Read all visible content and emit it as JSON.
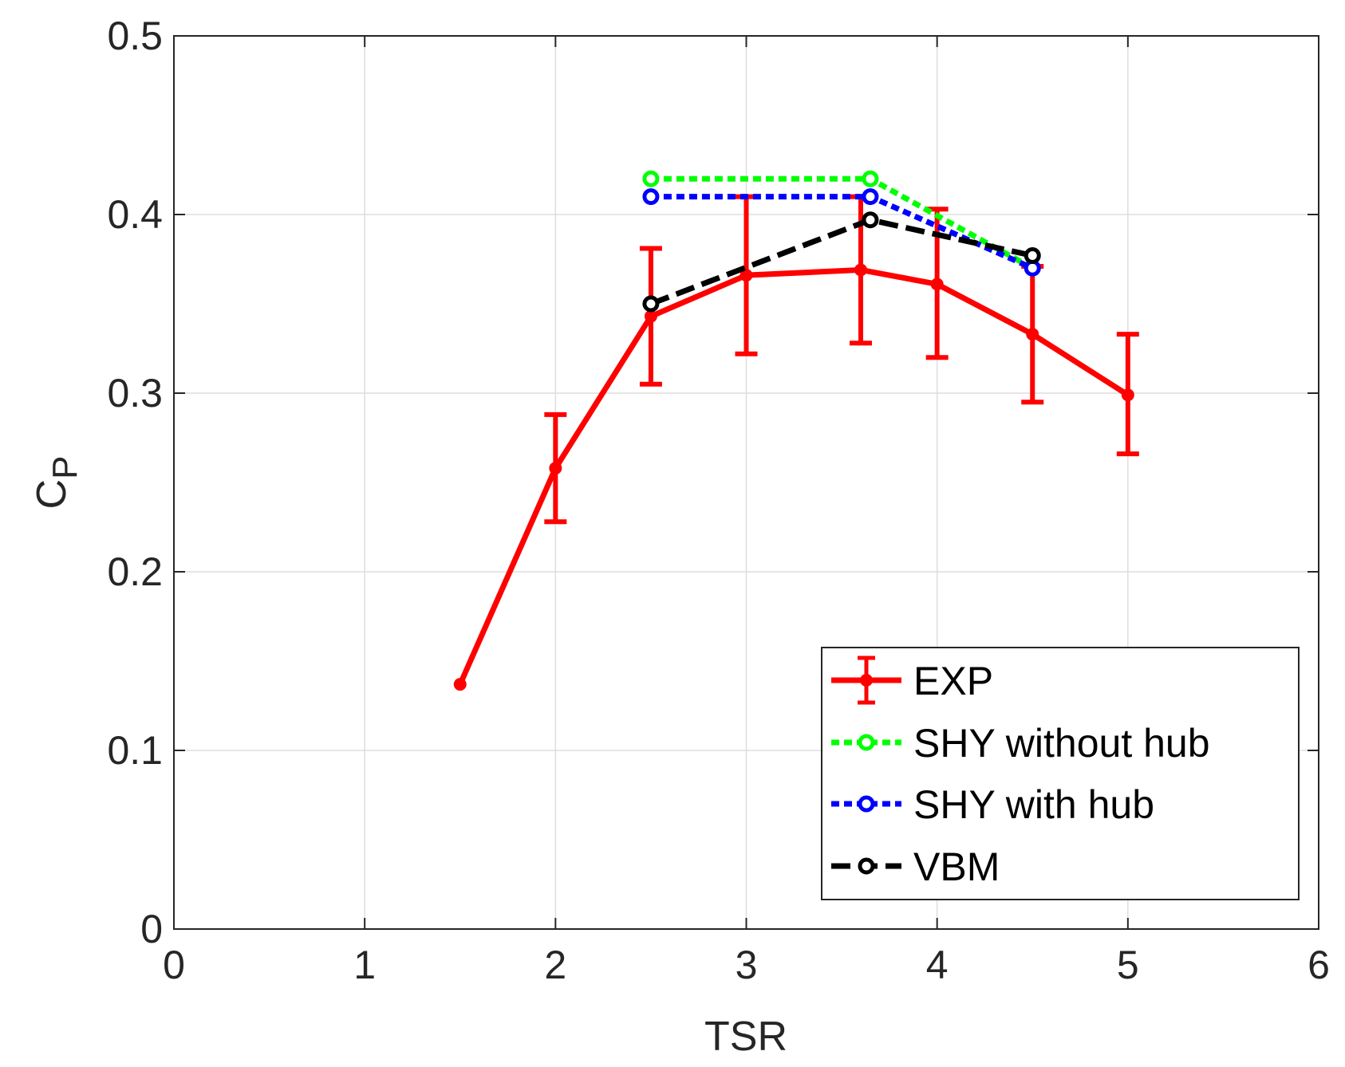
{
  "chart_data": {
    "type": "line",
    "xlabel": "TSR",
    "ylabel": {
      "main": "C",
      "sub": "P"
    },
    "xlim": [
      0,
      6
    ],
    "ylim": [
      0,
      0.5
    ],
    "xticks": [
      0,
      1,
      2,
      3,
      4,
      5,
      6
    ],
    "yticks": [
      0,
      0.1,
      0.2,
      0.3,
      0.4,
      0.5
    ],
    "xtick_labels": [
      "0",
      "1",
      "2",
      "3",
      "4",
      "5",
      "6"
    ],
    "ytick_labels": [
      "0",
      "0.1",
      "0.2",
      "0.3",
      "0.4",
      "0.5"
    ],
    "grid": true,
    "legend_position": "bottom-right",
    "series": [
      {
        "name": "EXP",
        "color": "#ff0000",
        "style": "solid",
        "x": [
          1.5,
          2.0,
          2.5,
          3.0,
          3.6,
          4.0,
          4.5,
          5.0
        ],
        "y": [
          0.137,
          0.258,
          0.343,
          0.366,
          0.369,
          0.361,
          0.333,
          0.299
        ],
        "err_low": [
          0.137,
          0.228,
          0.305,
          0.322,
          0.328,
          0.32,
          0.295,
          0.266
        ],
        "err_high": [
          0.137,
          0.288,
          0.381,
          0.41,
          0.41,
          0.403,
          0.371,
          0.333
        ]
      },
      {
        "name": "SHY without hub",
        "color": "#00ff00",
        "style": "dotted",
        "x": [
          2.5,
          3.65,
          4.5
        ],
        "y": [
          0.42,
          0.42,
          0.37
        ]
      },
      {
        "name": "SHY with hub",
        "color": "#0000ff",
        "style": "dotted",
        "x": [
          2.5,
          3.65,
          4.5
        ],
        "y": [
          0.41,
          0.41,
          0.37
        ]
      },
      {
        "name": "VBM",
        "color": "#000000",
        "style": "dashed",
        "x": [
          2.5,
          3.65,
          4.5
        ],
        "y": [
          0.35,
          0.397,
          0.377
        ]
      }
    ]
  }
}
